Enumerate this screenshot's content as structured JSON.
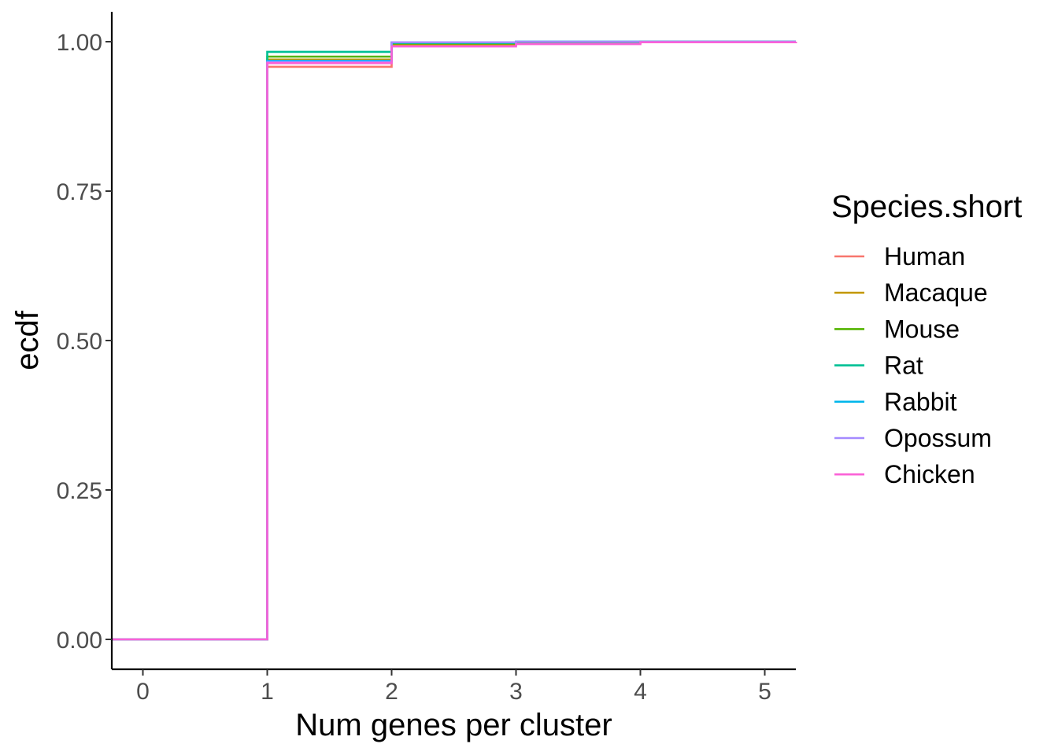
{
  "chart_data": {
    "type": "line",
    "step": true,
    "title": "",
    "xlabel": "Num genes per cluster",
    "ylabel": "ecdf",
    "xlim": [
      -0.25,
      5.25
    ],
    "ylim": [
      -0.05,
      1.05
    ],
    "x_ticks": [
      0,
      1,
      2,
      3,
      4,
      5
    ],
    "x_tick_labels": [
      "0",
      "1",
      "2",
      "3",
      "4",
      "5"
    ],
    "y_ticks": [
      0,
      0.25,
      0.5,
      0.75,
      1.0
    ],
    "y_tick_labels": [
      "0.00",
      "0.25",
      "0.50",
      "0.75",
      "1.00"
    ],
    "grid": false,
    "legend": {
      "title": "Species.short",
      "position": "right"
    },
    "series": [
      {
        "name": "Human",
        "color": "#F8766D",
        "x": [
          -0.25,
          1,
          2,
          3,
          4,
          5.25
        ],
        "y": [
          0,
          0.958,
          0.994,
          0.998,
          0.999,
          1.0
        ]
      },
      {
        "name": "Macaque",
        "color": "#C49A00",
        "x": [
          -0.25,
          1,
          2,
          3,
          4,
          5.25
        ],
        "y": [
          0,
          0.97,
          0.996,
          0.999,
          1.0,
          1.0
        ]
      },
      {
        "name": "Mouse",
        "color": "#53B400",
        "x": [
          -0.25,
          1,
          2,
          3,
          4,
          5.25
        ],
        "y": [
          0,
          0.975,
          0.997,
          0.999,
          1.0,
          1.0
        ]
      },
      {
        "name": "Rat",
        "color": "#00C094",
        "x": [
          -0.25,
          1,
          2,
          3,
          4,
          5.25
        ],
        "y": [
          0,
          0.983,
          0.998,
          1.0,
          1.0,
          1.0
        ]
      },
      {
        "name": "Rabbit",
        "color": "#00B6EB",
        "x": [
          -0.25,
          1,
          2,
          3,
          4,
          5.25
        ],
        "y": [
          0,
          0.968,
          0.999,
          1.0,
          1.0,
          1.0
        ]
      },
      {
        "name": "Opossum",
        "color": "#A58AFF",
        "x": [
          -0.25,
          1,
          2,
          3,
          4,
          5.25
        ],
        "y": [
          0,
          0.966,
          0.999,
          1.0,
          1.0,
          1.0
        ]
      },
      {
        "name": "Chicken",
        "color": "#FB61D7",
        "x": [
          -0.25,
          1,
          2,
          3,
          4,
          5.25
        ],
        "y": [
          0,
          0.964,
          0.992,
          0.996,
          0.999,
          1.0
        ]
      }
    ]
  }
}
